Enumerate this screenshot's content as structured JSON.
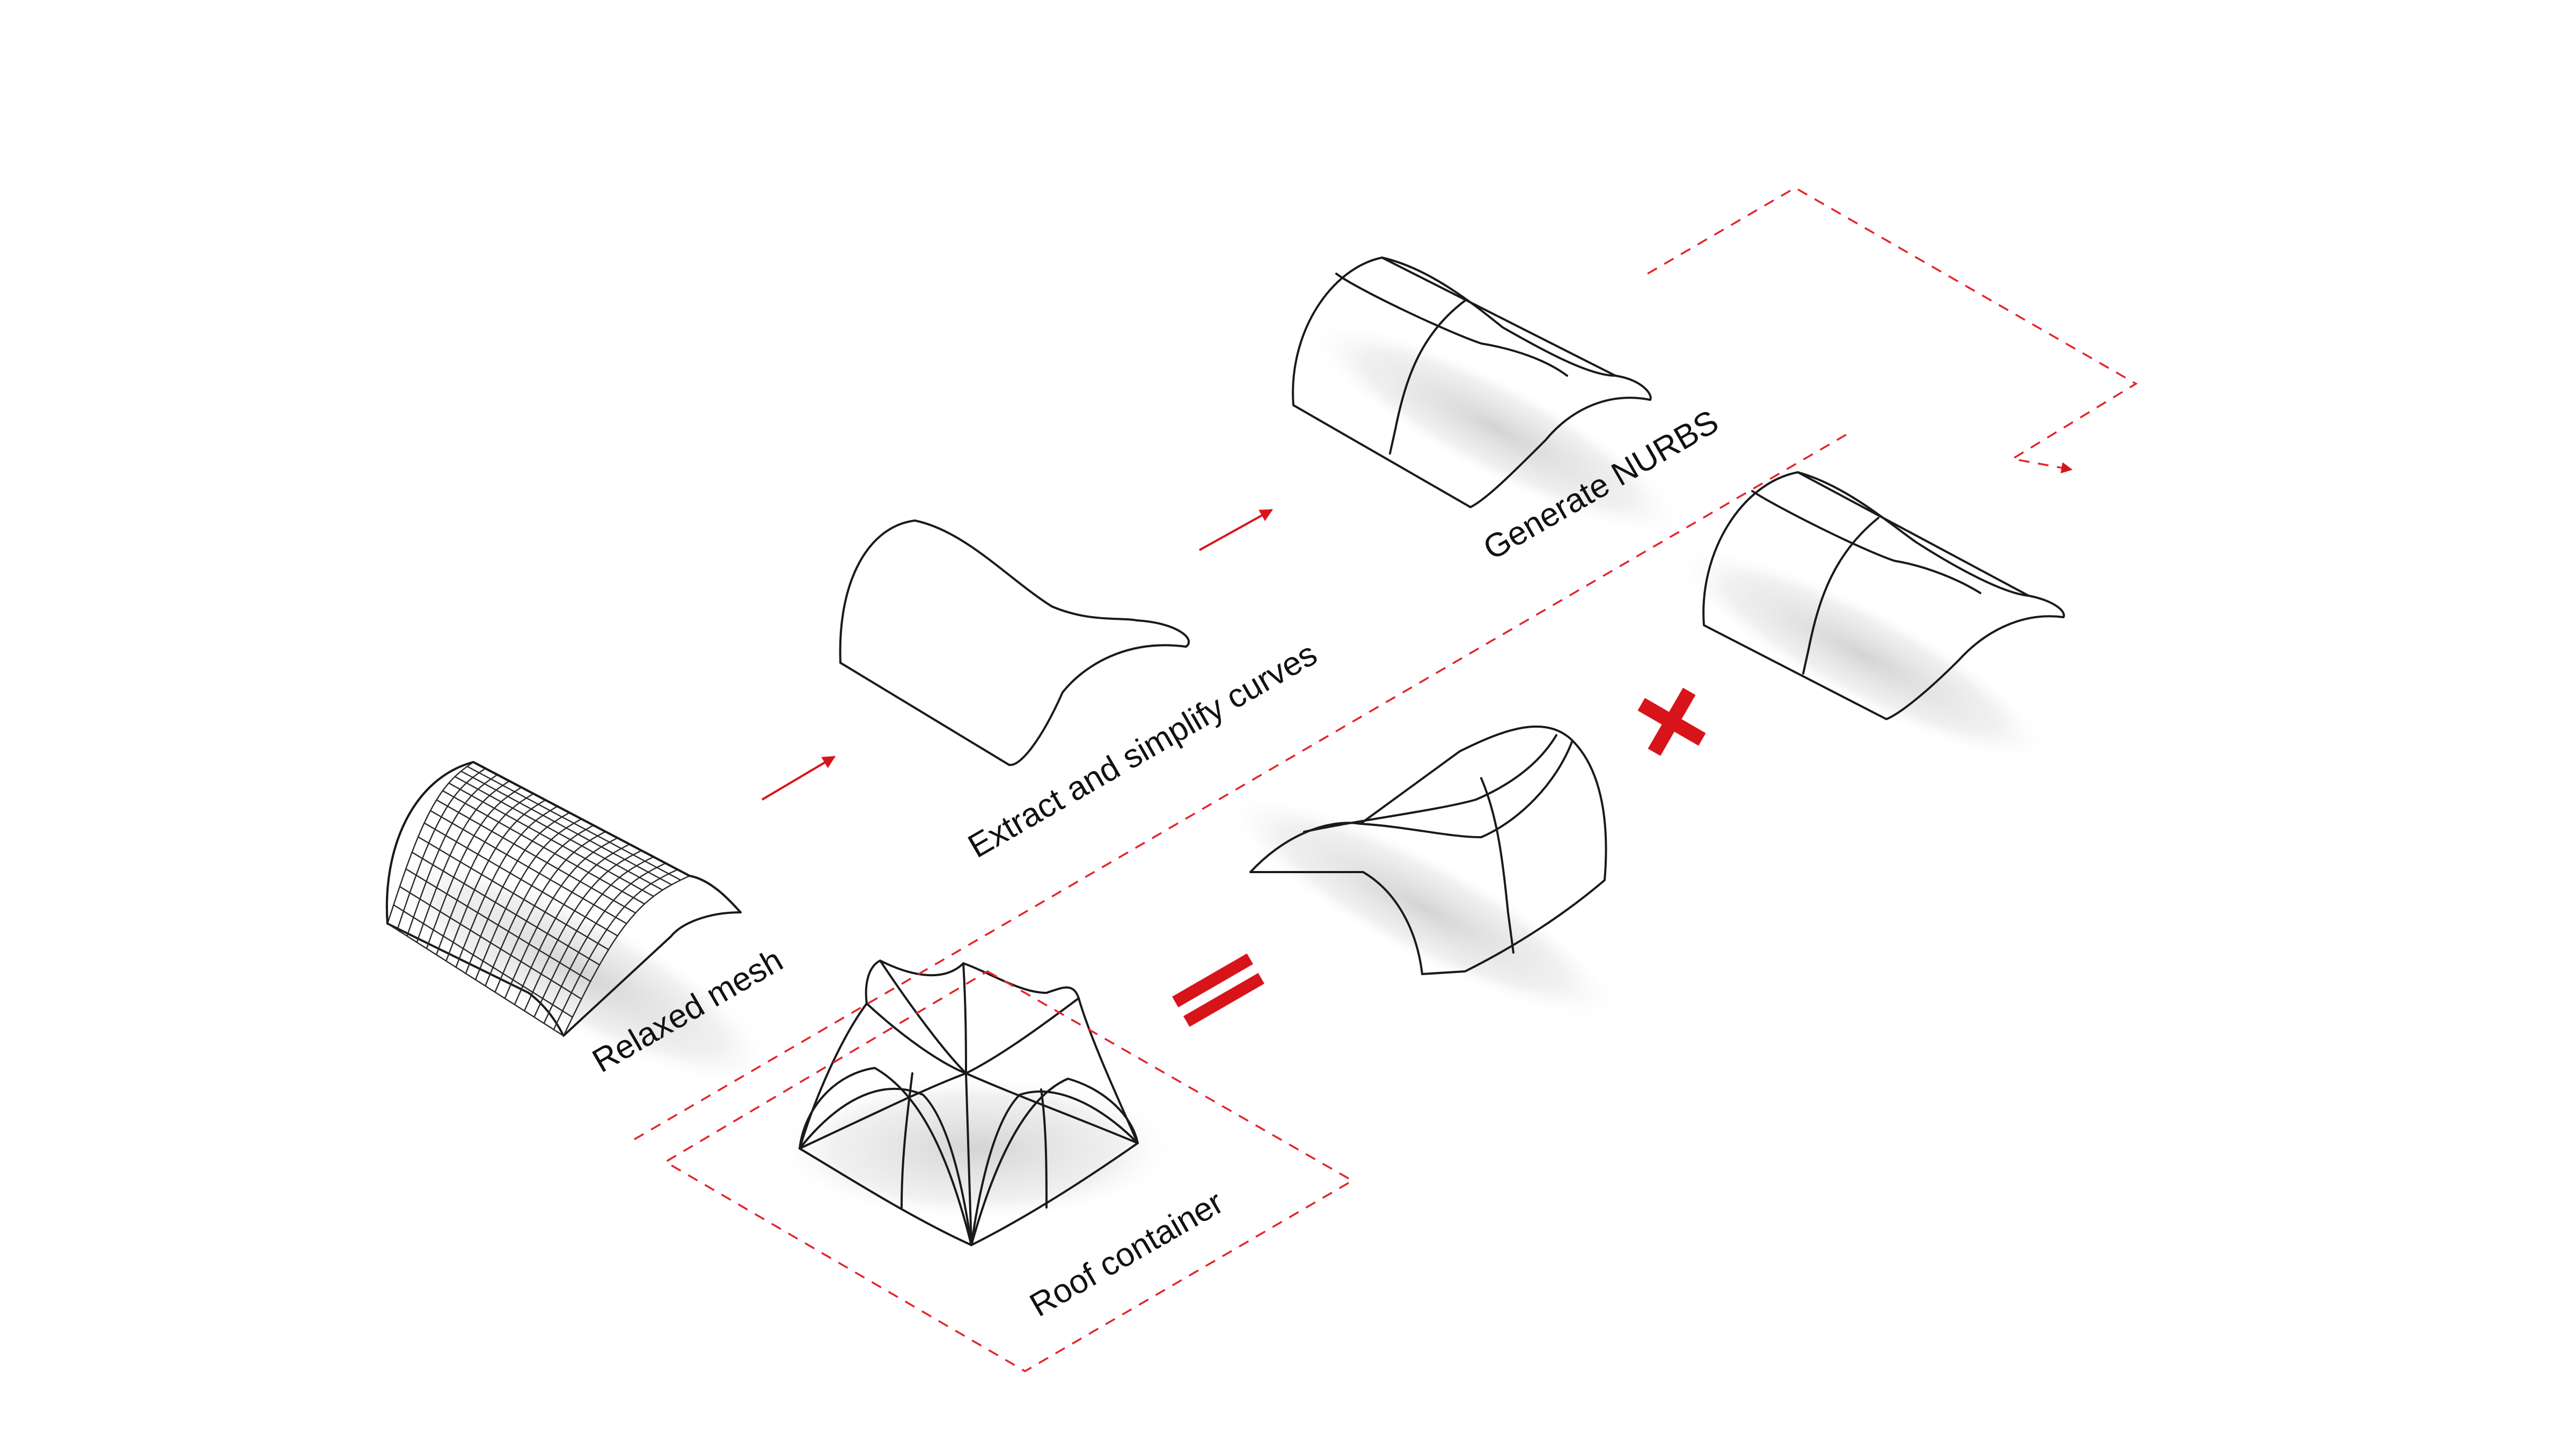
{
  "diagram": {
    "steps": [
      {
        "id": "relaxed-mesh",
        "label": "Relaxed mesh"
      },
      {
        "id": "extract-curves",
        "label": "Extract and simplify curves"
      },
      {
        "id": "generate-nurbs",
        "label": "Generate NURBS"
      }
    ],
    "result_label": "Roof container",
    "operators": {
      "plus": "+",
      "equals": "="
    },
    "colors": {
      "accent": "#d8141b",
      "dashed": "#e3262b",
      "roof_top": "#f4d57c",
      "roof_side": "#e0a070",
      "shadow": "#d9d9d9",
      "line": "#1a1a1a"
    }
  }
}
